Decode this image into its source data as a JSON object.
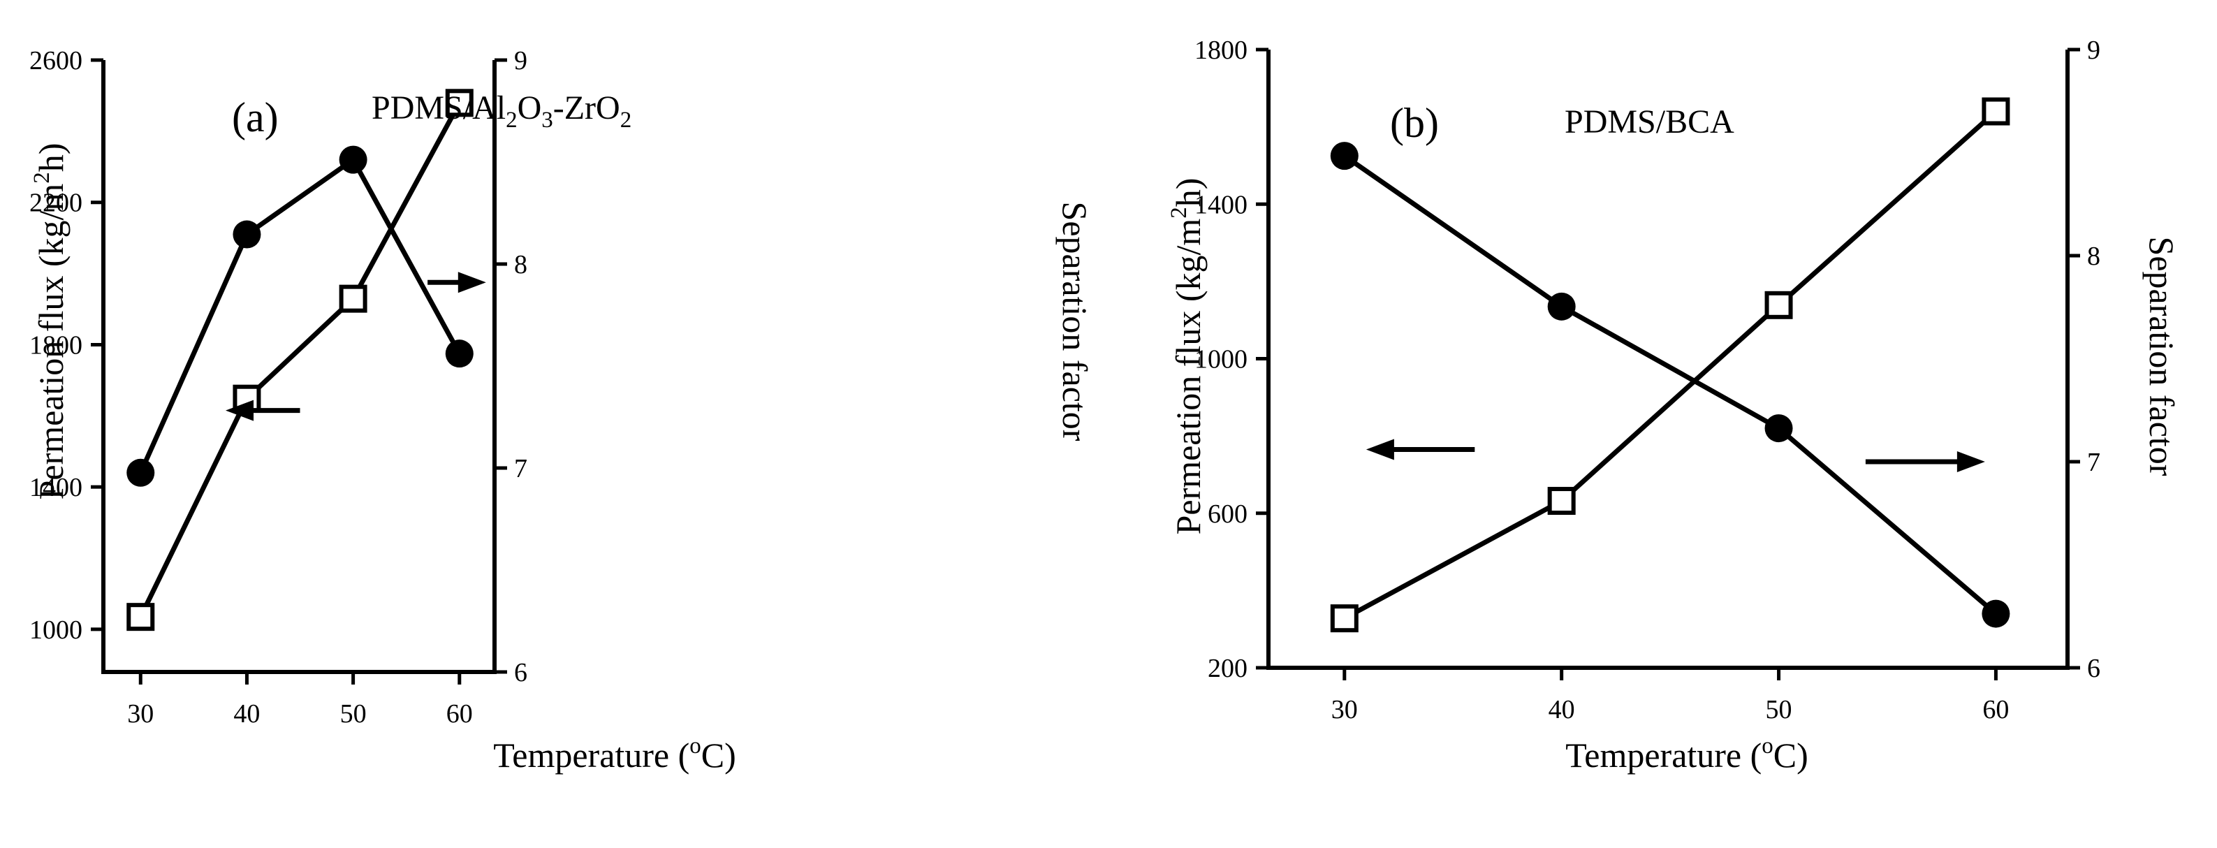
{
  "chart_data": [
    {
      "type": "line",
      "panel_label": "(a)",
      "title": {
        "parts": [
          {
            "text": "PDMS/Al",
            "shift": "none"
          },
          {
            "text": "2",
            "shift": "sub"
          },
          {
            "text": "O",
            "shift": "none"
          },
          {
            "text": "3",
            "shift": "sub"
          },
          {
            "text": "-ZrO",
            "shift": "none"
          },
          {
            "text": "2",
            "shift": "sub"
          }
        ]
      },
      "xlabel": {
        "parts": [
          {
            "text": "Temperature (",
            "shift": "none"
          },
          {
            "text": "o",
            "shift": "sup"
          },
          {
            "text": "C)",
            "shift": "none"
          }
        ]
      },
      "ylabel_left": {
        "parts": [
          {
            "text": "Permeation flux (kg/m",
            "shift": "none"
          },
          {
            "text": "2",
            "shift": "sup"
          },
          {
            "text": "h)",
            "shift": "none"
          }
        ]
      },
      "ylabel_right": "Separation factor",
      "xlim": [
        26.5,
        63.3
      ],
      "ylim_left": [
        880,
        2600
      ],
      "ylim_right": [
        6,
        9
      ],
      "x_ticks": [
        30,
        40,
        50,
        60
      ],
      "y_left_ticks": [
        1000,
        1400,
        1800,
        2200,
        2600
      ],
      "y_right_ticks": [
        6,
        7,
        8,
        9
      ],
      "x": [
        30,
        40,
        50,
        60
      ],
      "series": [
        {
          "name": "Permeation flux",
          "axis": "left",
          "marker": "filled-circle",
          "values": [
            1440,
            2110,
            2320,
            1775
          ]
        },
        {
          "name": "Separation factor",
          "axis": "right",
          "marker": "open-square",
          "values": [
            6.27,
            7.34,
            7.83,
            8.79
          ]
        }
      ],
      "arrows": [
        {
          "points_to": "left",
          "x_from": 45,
          "x_to": 38,
          "y": 1615,
          "axis": "left"
        },
        {
          "points_to": "right",
          "x_from": 57,
          "x_to": 62.5,
          "y": 7.91,
          "axis": "right"
        }
      ]
    },
    {
      "type": "line",
      "panel_label": "(b)",
      "title": {
        "parts": [
          {
            "text": "PDMS/BCA",
            "shift": "none"
          }
        ]
      },
      "xlabel": {
        "parts": [
          {
            "text": "Temperature (",
            "shift": "none"
          },
          {
            "text": "o",
            "shift": "sup"
          },
          {
            "text": "C)",
            "shift": "none"
          }
        ]
      },
      "ylabel_left": {
        "parts": [
          {
            "text": "Permeation flux (kg/m",
            "shift": "none"
          },
          {
            "text": "2",
            "shift": "sup"
          },
          {
            "text": "h)",
            "shift": "none"
          }
        ]
      },
      "ylabel_right": "Separation factor",
      "xlim": [
        26.5,
        63.3
      ],
      "ylim_left": [
        200,
        1800
      ],
      "ylim_right": [
        6,
        9
      ],
      "x_ticks": [
        30,
        40,
        50,
        60
      ],
      "y_left_ticks": [
        200,
        600,
        1000,
        1400,
        1800
      ],
      "y_right_ticks": [
        6,
        7,
        8,
        9
      ],
      "x": [
        30,
        40,
        50,
        60
      ],
      "series": [
        {
          "name": "Permeation flux",
          "axis": "left",
          "marker": "filled-circle",
          "values": [
            1525,
            1135,
            820,
            340
          ]
        },
        {
          "name": "Separation factor",
          "axis": "right",
          "marker": "open-square",
          "values": [
            6.24,
            6.81,
            7.76,
            8.7
          ]
        }
      ],
      "arrows": [
        {
          "points_to": "left",
          "x_from": 36,
          "x_to": 31,
          "y": 765,
          "axis": "left"
        },
        {
          "points_to": "right",
          "x_from": 54,
          "x_to": 59.5,
          "y": 7,
          "axis": "right"
        }
      ]
    }
  ]
}
